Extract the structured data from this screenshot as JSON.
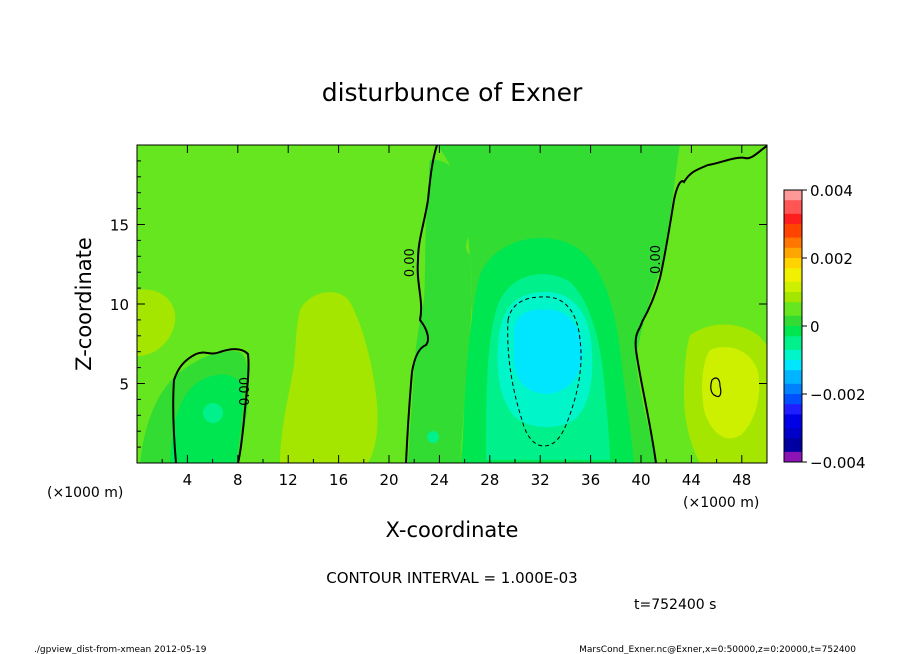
{
  "chart_data": {
    "type": "contour",
    "title": "disturbunce of Exner",
    "xlabel": "X-coordinate",
    "ylabel": "Z-coordinate",
    "x_unit_label": "(×1000 m)",
    "y_unit_label": "(×1000 m)",
    "xlim": [
      0,
      50
    ],
    "ylim": [
      0,
      20
    ],
    "x_ticks": [
      4,
      8,
      12,
      16,
      20,
      24,
      28,
      32,
      36,
      40,
      44,
      48
    ],
    "x_tick_labels": [
      "4",
      "8",
      "12",
      "16",
      "20",
      "24",
      "28",
      "32",
      "36",
      "40",
      "44",
      "48"
    ],
    "y_ticks": [
      5,
      10,
      15
    ],
    "y_tick_labels": [
      "5",
      "10",
      "15"
    ],
    "contour_interval_text": "CONTOUR INTERVAL = 1.000E-03",
    "time_text": "t=752400 s",
    "footer_left": "./gpview_dist-from-xmean  2012-05-19",
    "footer_right": "MarsCond_Exner.nc@Exner,x=0:50000,z=0:20000,t=752400",
    "contour_labels": [
      {
        "text": "0.00",
        "x": 8.9,
        "z": 4.5
      },
      {
        "text": "0.00",
        "x": 22.0,
        "z": 12.6
      },
      {
        "text": "0.00",
        "x": 41.5,
        "z": 12.8
      }
    ],
    "colorbar": {
      "labels": [
        "0.004",
        "0.002",
        "0",
        "−0.002",
        "−0.004"
      ],
      "values": [
        0.004,
        0.002,
        0,
        -0.002,
        -0.004
      ],
      "range": [
        -0.004,
        0.004
      ],
      "bands": [
        {
          "from": 0.0037,
          "to": 0.004,
          "color": "#ff9999"
        },
        {
          "from": 0.0033,
          "to": 0.0037,
          "color": "#ff5555"
        },
        {
          "from": 0.003,
          "to": 0.0033,
          "color": "#ff1e1e"
        },
        {
          "from": 0.0026,
          "to": 0.003,
          "color": "#ff4400"
        },
        {
          "from": 0.0023,
          "to": 0.0026,
          "color": "#ff7700"
        },
        {
          "from": 0.002,
          "to": 0.0023,
          "color": "#ffa500"
        },
        {
          "from": 0.0017,
          "to": 0.002,
          "color": "#ffd200"
        },
        {
          "from": 0.0013,
          "to": 0.0017,
          "color": "#f0f000"
        },
        {
          "from": 0.001,
          "to": 0.0013,
          "color": "#ccf000"
        },
        {
          "from": 0.0007,
          "to": 0.001,
          "color": "#a5e600"
        },
        {
          "from": 0.0003,
          "to": 0.0007,
          "color": "#66e61e"
        },
        {
          "from": 0.0,
          "to": 0.0003,
          "color": "#33dc33"
        },
        {
          "from": -0.0003,
          "to": 0.0,
          "color": "#00e650"
        },
        {
          "from": -0.0007,
          "to": -0.0003,
          "color": "#00f08c"
        },
        {
          "from": -0.001,
          "to": -0.0007,
          "color": "#00f5c8"
        },
        {
          "from": -0.0013,
          "to": -0.001,
          "color": "#00e6ff"
        },
        {
          "from": -0.0017,
          "to": -0.0013,
          "color": "#00b4ff"
        },
        {
          "from": -0.002,
          "to": -0.0017,
          "color": "#0082ff"
        },
        {
          "from": -0.0023,
          "to": -0.002,
          "color": "#0050ff"
        },
        {
          "from": -0.0026,
          "to": -0.0023,
          "color": "#1e1eff"
        },
        {
          "from": -0.003,
          "to": -0.0026,
          "color": "#0000e6"
        },
        {
          "from": -0.0033,
          "to": -0.003,
          "color": "#0000c8"
        },
        {
          "from": -0.0037,
          "to": -0.0033,
          "color": "#0000a0"
        },
        {
          "from": -0.004,
          "to": -0.0037,
          "color": "#8c14b4"
        }
      ]
    }
  }
}
